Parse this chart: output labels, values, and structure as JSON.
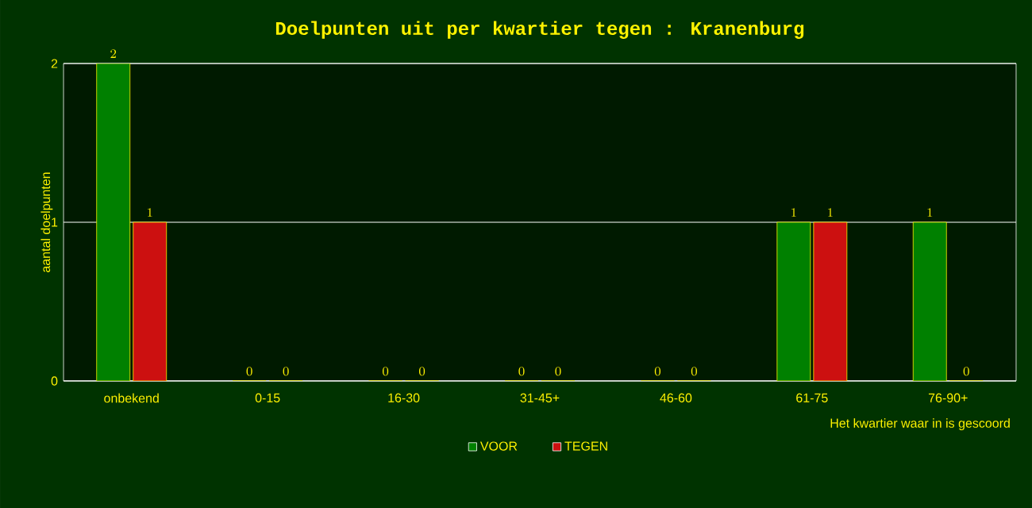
{
  "chart_data": {
    "type": "bar",
    "title": "Doelpunten uit per kwartier tegen : Kranenburg",
    "xlabel": "Het kwartier waar in is gescoord",
    "ylabel": "aantal doelpunten",
    "categories": [
      "onbekend",
      "0-15",
      "16-30",
      "31-45+",
      "46-60",
      "61-75",
      "76-90+"
    ],
    "series": [
      {
        "name": "VOOR",
        "color": "#008000",
        "values": [
          2,
          0,
          0,
          0,
          0,
          1,
          1
        ]
      },
      {
        "name": "TEGEN",
        "color": "#cc1010",
        "values": [
          1,
          0,
          0,
          0,
          0,
          1,
          0
        ]
      }
    ],
    "ylim": [
      0,
      2
    ],
    "yticks": [
      0,
      1,
      2
    ],
    "grid": "y",
    "legend": "bottom",
    "data_labels": true
  }
}
